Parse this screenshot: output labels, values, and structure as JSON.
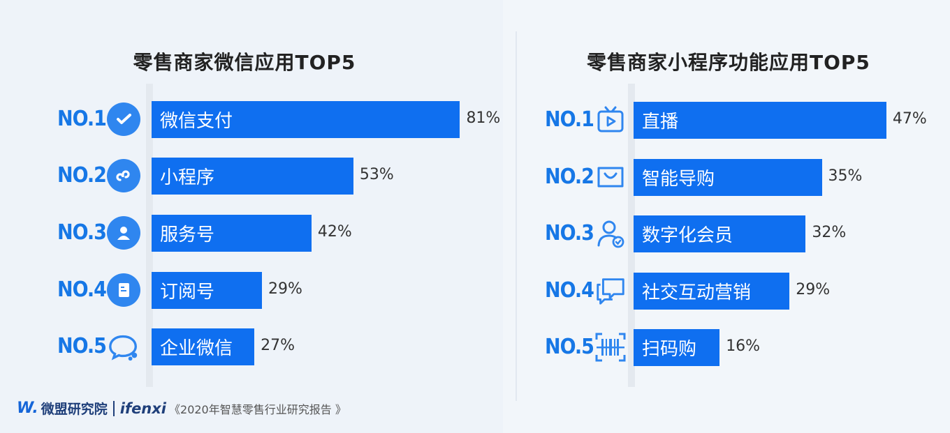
{
  "chart_data": [
    {
      "type": "bar",
      "title": "零售商家微信应用TOP5",
      "categories": [
        "微信支付",
        "小程序",
        "服务号",
        "订阅号",
        "企业微信"
      ],
      "values": [
        81,
        53,
        42,
        29,
        27
      ],
      "value_suffix": "%",
      "ranks": [
        "NO.1",
        "NO.2",
        "NO.3",
        "NO.4",
        "NO.5"
      ],
      "icons": [
        "wechat-pay-icon",
        "mini-program-icon",
        "service-account-icon",
        "subscription-account-icon",
        "wecom-icon"
      ],
      "xlim": [
        0,
        100
      ],
      "color": "#0f6ff0"
    },
    {
      "type": "bar",
      "title": "零售商家小程序功能应用TOP5",
      "categories": [
        "直播",
        "智能导购",
        "数字化会员",
        "社交互动营销",
        "扫码购"
      ],
      "values": [
        47,
        35,
        32,
        29,
        16
      ],
      "value_suffix": "%",
      "ranks": [
        "NO.1",
        "NO.2",
        "NO.3",
        "NO.4",
        "NO.5"
      ],
      "icons": [
        "live-tv-icon",
        "smart-guide-icon",
        "member-icon",
        "chat-bubbles-icon",
        "barcode-scan-icon"
      ],
      "xlim": [
        0,
        100
      ],
      "color": "#0f6ff0"
    }
  ],
  "footer": {
    "logo_mark": "W.",
    "brand_a": "微盟研究院",
    "brand_b": "ifenxi",
    "report": "《2020年智慧零售行业研究报告 》"
  }
}
